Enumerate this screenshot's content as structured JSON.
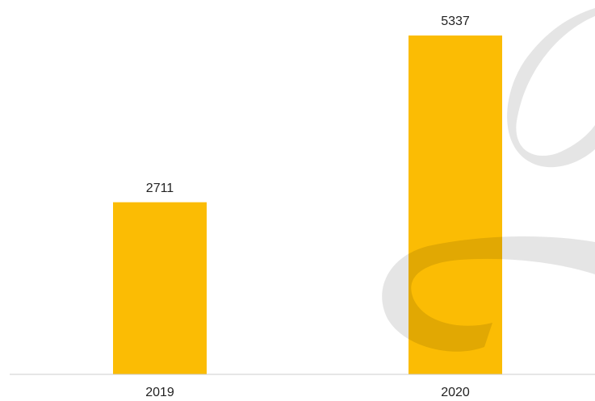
{
  "chart_data": {
    "type": "bar",
    "categories": [
      "2019",
      "2020"
    ],
    "values": [
      2711,
      5337
    ],
    "color": "#fbbc04"
  }
}
